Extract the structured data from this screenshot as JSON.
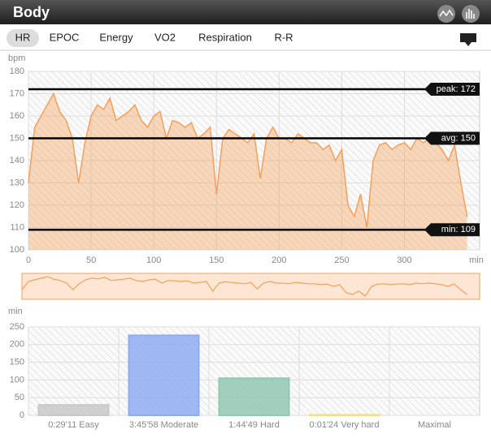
{
  "header": {
    "title": "Body"
  },
  "tabs": [
    "HR",
    "EPOC",
    "Energy",
    "VO2",
    "Respiration",
    "R-R"
  ],
  "chart_data": [
    {
      "type": "area",
      "ylabel": "bpm",
      "xlabel": "min",
      "color": "#f5a05a",
      "x": [
        0,
        5,
        10,
        15,
        20,
        25,
        30,
        35,
        40,
        45,
        50,
        55,
        60,
        65,
        70,
        75,
        80,
        85,
        90,
        95,
        100,
        105,
        110,
        115,
        120,
        125,
        130,
        135,
        140,
        145,
        150,
        155,
        160,
        165,
        170,
        175,
        180,
        185,
        190,
        195,
        200,
        205,
        210,
        215,
        220,
        225,
        230,
        235,
        240,
        245,
        250,
        255,
        260,
        265,
        270,
        275,
        280,
        285,
        290,
        295,
        300,
        305,
        310,
        315,
        320,
        325,
        330,
        335,
        340,
        345,
        350
      ],
      "values": [
        130,
        155,
        160,
        165,
        170,
        162,
        158,
        150,
        130,
        148,
        160,
        165,
        163,
        168,
        158,
        160,
        162,
        165,
        158,
        155,
        160,
        162,
        150,
        158,
        157,
        155,
        157,
        150,
        152,
        155,
        125,
        150,
        154,
        152,
        150,
        148,
        152,
        132,
        150,
        155,
        150,
        150,
        148,
        152,
        150,
        148,
        148,
        145,
        147,
        140,
        145,
        120,
        115,
        125,
        110,
        140,
        147,
        148,
        145,
        147,
        148,
        145,
        150,
        148,
        150,
        148,
        145,
        140,
        147,
        130,
        115
      ],
      "xlim": [
        0,
        360
      ],
      "xticks": [
        0,
        50,
        100,
        150,
        200,
        250,
        300
      ],
      "ylim": [
        100,
        180
      ],
      "yticks": [
        100,
        110,
        120,
        130,
        140,
        150,
        160,
        170,
        180
      ],
      "reference_lines": [
        {
          "value": 172,
          "label": "peak: 172"
        },
        {
          "value": 150,
          "label": "avg: 150"
        },
        {
          "value": 109,
          "label": "min: 109"
        }
      ],
      "grid": true
    },
    {
      "type": "bar",
      "ylabel": "min",
      "categories": [
        "0:29'11 Easy",
        "3:45'58 Moderate",
        "1:44'49 Hard",
        "0:01'24 Very hard",
        "Maximal"
      ],
      "values": [
        29.2,
        226,
        104.8,
        1.4,
        0
      ],
      "colors": [
        "#c8c8c8",
        "#8fabf2",
        "#93c8b3",
        "#f3df86",
        "#cccccc"
      ],
      "ylim": [
        0,
        250
      ],
      "yticks": [
        0,
        50,
        100,
        150,
        200,
        250
      ],
      "grid": true
    }
  ]
}
